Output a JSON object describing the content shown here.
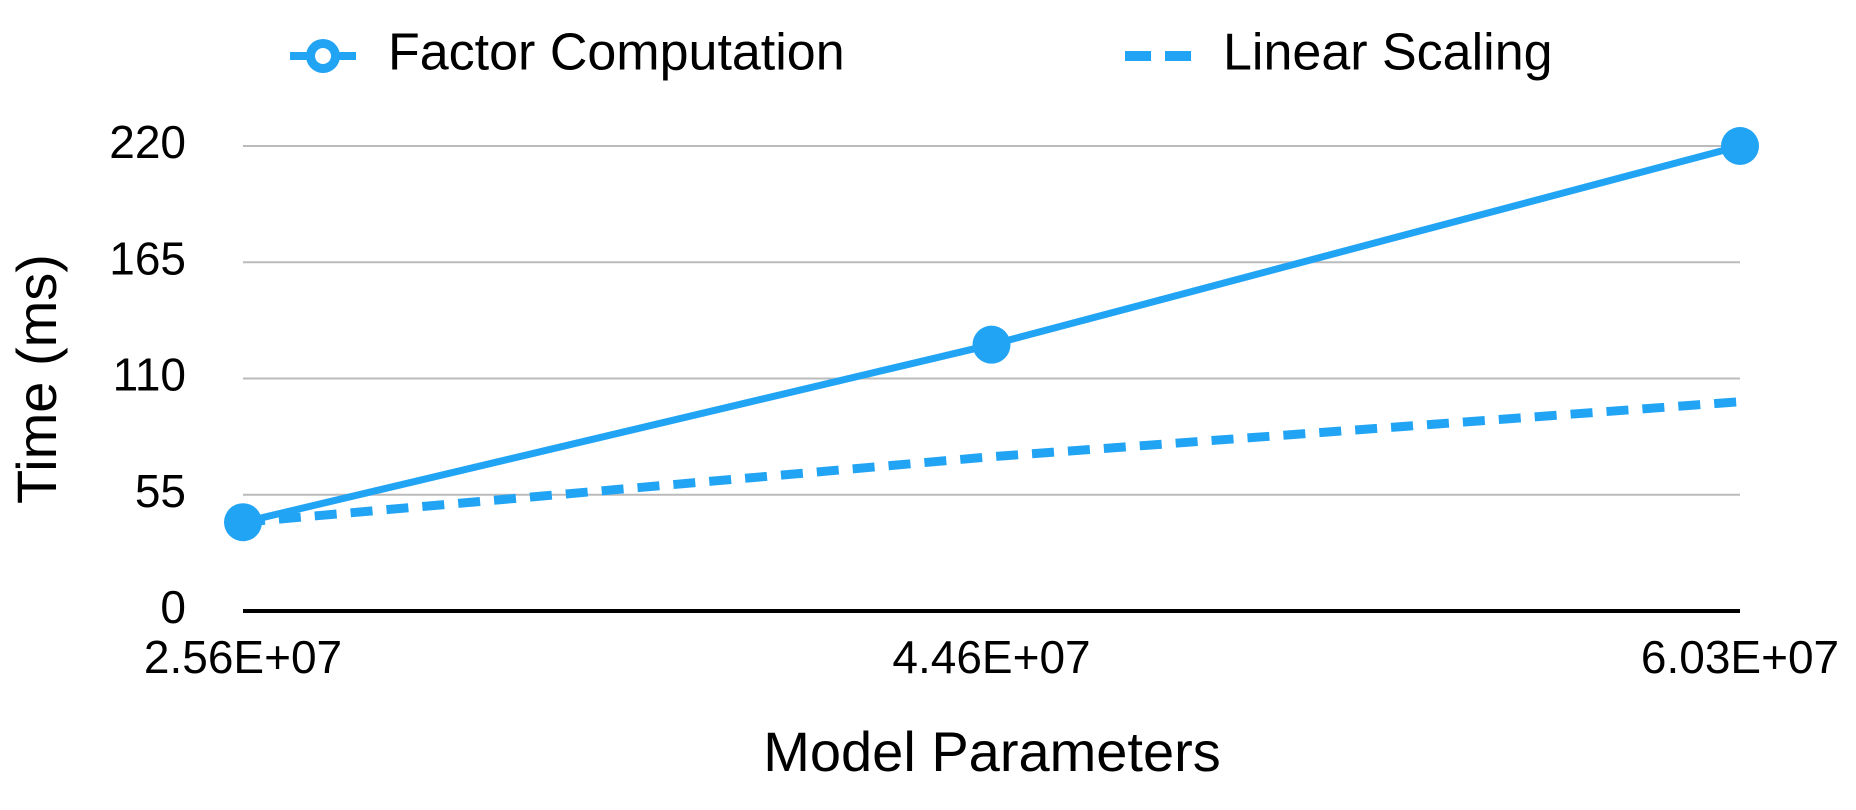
{
  "chart_data": {
    "type": "line",
    "categories": [
      "2.56E+07",
      "4.46E+07",
      "6.03E+07"
    ],
    "x_label": "Model Parameters",
    "y_label": "Time (ms)",
    "series": [
      {
        "name": "Factor Computation",
        "color": "#22a4f5",
        "line_style": "solid",
        "markers": true,
        "values": [
          42,
          126,
          220
        ]
      },
      {
        "name": "Linear Scaling",
        "color": "#22a4f5",
        "line_style": "dashed",
        "markers": false,
        "values": [
          42,
          73,
          99
        ]
      }
    ],
    "ylim": [
      0,
      220
    ],
    "yticks": [
      0,
      55,
      110,
      165,
      220
    ],
    "grid": true,
    "legend": "top"
  }
}
